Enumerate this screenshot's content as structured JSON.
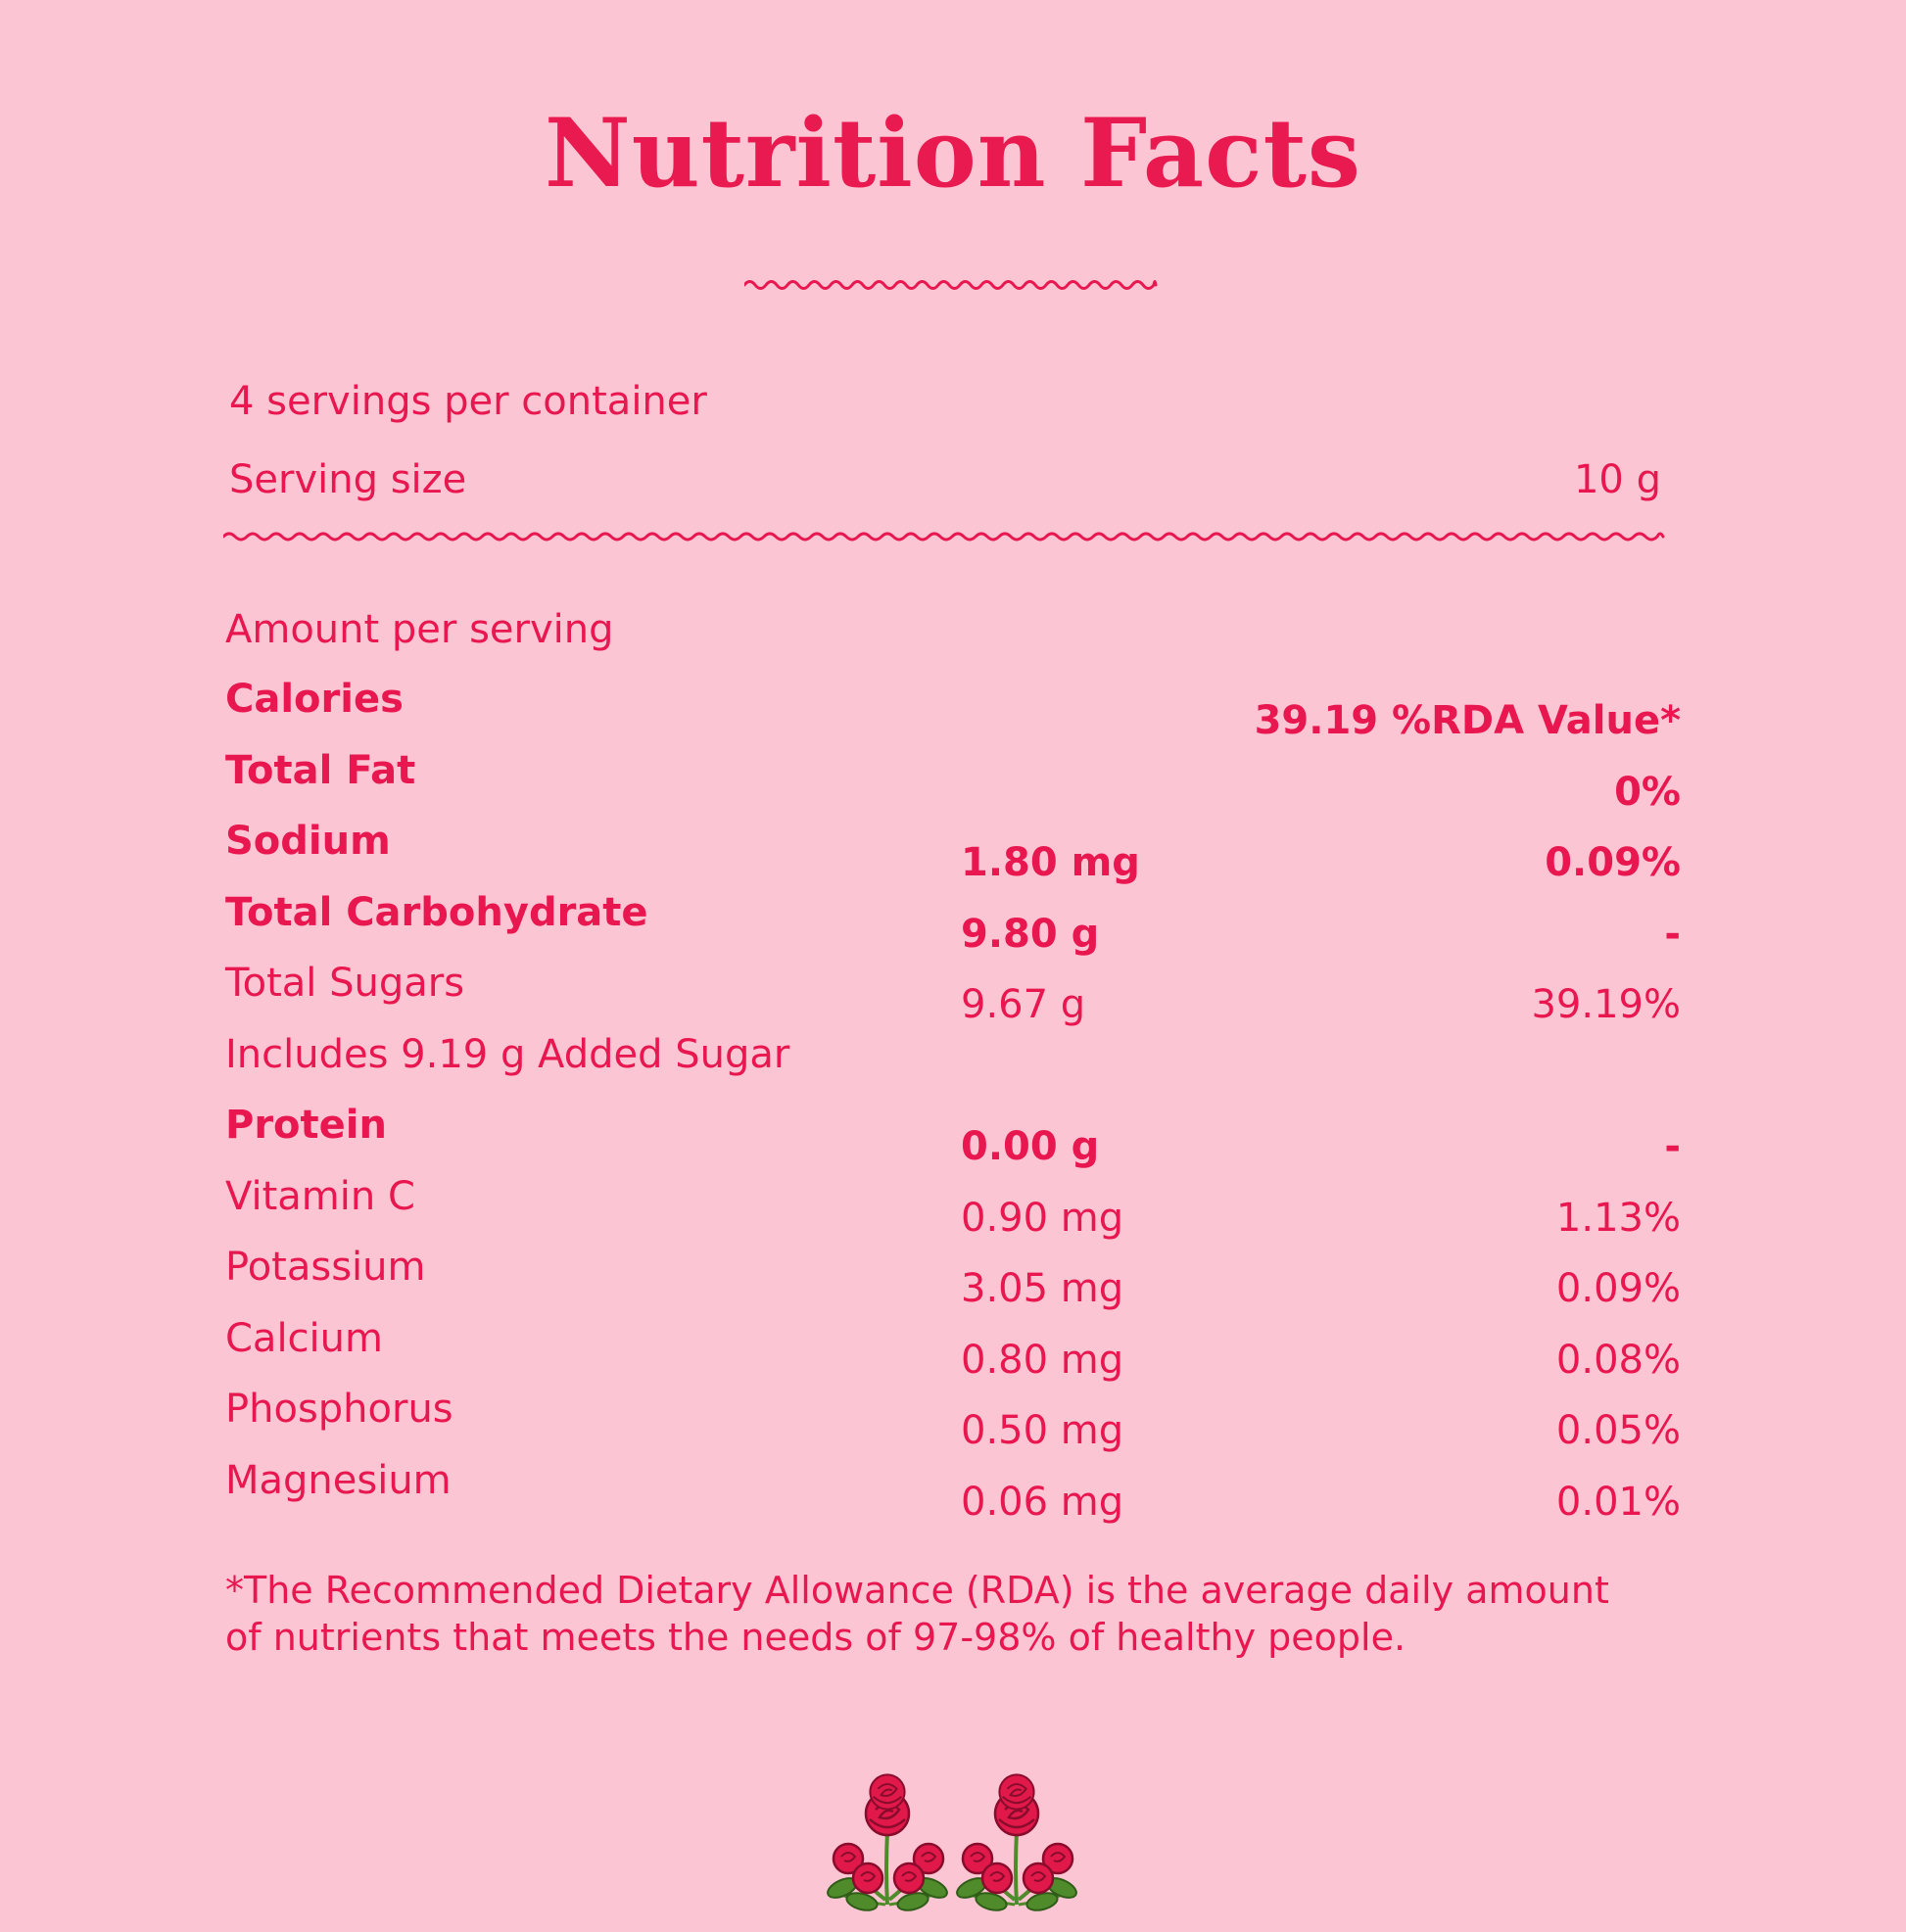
{
  "title": "Nutrition Facts",
  "servings_per_container": "4 servings per container",
  "serving_size": {
    "label": "Serving size",
    "value": "10 g"
  },
  "amount_per_serving": "Amount per serving",
  "rows": [
    {
      "name": "Calories",
      "amount": "",
      "rda": "39.19 %RDA Value*",
      "bold": true
    },
    {
      "name": "Total Fat",
      "amount": "",
      "rda": "0%",
      "bold": true
    },
    {
      "name": "Sodium",
      "amount": "1.80 mg",
      "rda": "0.09%",
      "bold": true
    },
    {
      "name": "Total Carbohydrate",
      "amount": "9.80 g",
      "rda": "-",
      "bold": true
    },
    {
      "name": "Total Sugars",
      "amount": "9.67 g",
      "rda": "39.19%",
      "bold": false
    },
    {
      "name": "Includes 9.19 g Added Sugar",
      "amount": "",
      "rda": "",
      "bold": false
    },
    {
      "name": "Protein",
      "amount": "0.00 g",
      "rda": "-",
      "bold": true
    },
    {
      "name": "Vitamin C",
      "amount": "0.90 mg",
      "rda": "1.13%",
      "bold": false
    },
    {
      "name": "Potassium",
      "amount": "3.05 mg",
      "rda": "0.09%",
      "bold": false
    },
    {
      "name": "Calcium",
      "amount": "0.80 mg",
      "rda": "0.08%",
      "bold": false
    },
    {
      "name": "Phosphorus",
      "amount": "0.50 mg",
      "rda": "0.05%",
      "bold": false
    },
    {
      "name": "Magnesium",
      "amount": "0.06 mg",
      "rda": "0.01%",
      "bold": false
    }
  ],
  "footnote_lines": [
    "*The Recommended Dietary Allowance (RDA) is the average daily amount",
    "of nutrients that meets the needs of 97-98% of healthy people."
  ],
  "decoration": {
    "icon": "roses-icon"
  },
  "colors": {
    "background": "#fcc5d3",
    "accent": "#e8174f",
    "leaf": "#4f8a2b"
  }
}
